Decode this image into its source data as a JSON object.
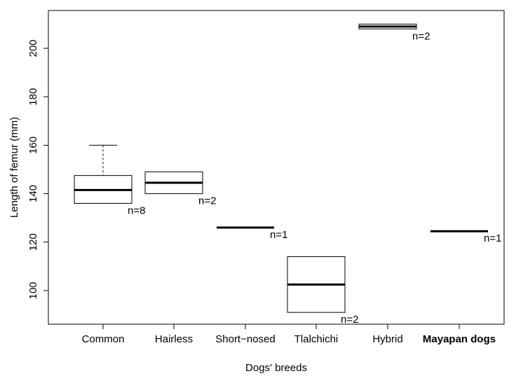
{
  "chart_data": {
    "type": "boxplot",
    "xlabel": "Dogs' breeds",
    "ylabel": "Length of femur (mm)",
    "ylim": [
      87,
      215
    ],
    "yticks": [
      100,
      120,
      140,
      160,
      180,
      200
    ],
    "grid": false,
    "legend": "none",
    "categories": [
      "Common",
      "Hairless",
      "Short−nosed",
      "Tlalchichi",
      "Hybrid",
      "Mayapan dogs"
    ],
    "emphasized_category": "Mayapan dogs",
    "boxes": [
      {
        "category": "Common",
        "q1": 136,
        "median": 141.5,
        "q3": 147.5,
        "whisker_low": 136,
        "whisker_high": 160,
        "n_label": "n=8"
      },
      {
        "category": "Hairless",
        "q1": 140,
        "median": 144.5,
        "q3": 149,
        "whisker_low": 140,
        "whisker_high": 149,
        "n_label": "n=2"
      },
      {
        "category": "Short−nosed",
        "q1": 126,
        "median": 126,
        "q3": 126,
        "whisker_low": 126,
        "whisker_high": 126,
        "n_label": "n=1"
      },
      {
        "category": "Tlalchichi",
        "q1": 91,
        "median": 102.5,
        "q3": 114,
        "whisker_low": 91,
        "whisker_high": 114,
        "n_label": "n=2"
      },
      {
        "category": "Hybrid",
        "q1": 208,
        "median": 209,
        "q3": 210,
        "whisker_low": 208,
        "whisker_high": 210,
        "n_label": "n=2"
      },
      {
        "category": "Mayapan dogs",
        "q1": 124.5,
        "median": 124.5,
        "q3": 124.5,
        "whisker_low": 124.5,
        "whisker_high": 124.5,
        "n_label": "n=1"
      }
    ]
  }
}
